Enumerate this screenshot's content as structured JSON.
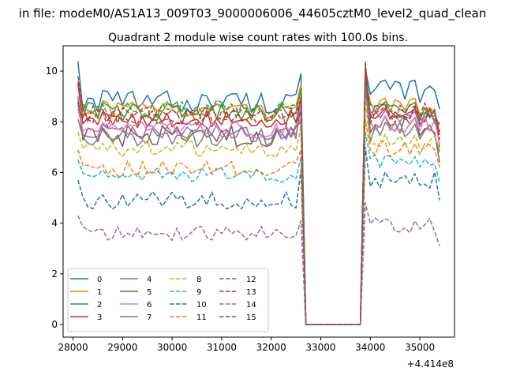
{
  "suptitle": "in file: modeM0/AS1A13_009T03_9000006006_44605cztM0_level2_quad_clean",
  "chart_data": {
    "type": "line",
    "title": "Quadrant 2 module wise count rates with 100.0s bins.",
    "xlabel": "",
    "ylabel": "",
    "x_offset_label": "+4.414e8",
    "xlim": [
      27800,
      35700
    ],
    "ylim": [
      -0.5,
      11.0
    ],
    "xticks": [
      28000,
      29000,
      30000,
      31000,
      32000,
      33000,
      34000,
      35000
    ],
    "yticks": [
      0,
      2,
      4,
      6,
      8,
      10
    ],
    "grid": false,
    "legend_position": "lower-left",
    "legend_columns": 4,
    "x": {
      "start": 28100,
      "step": 100,
      "count": 74
    },
    "gap": {
      "start": 32700,
      "end": 33800,
      "value": 0
    },
    "series": [
      {
        "name": "0",
        "color": "#1f77b4",
        "dash": "solid",
        "base": 8.8,
        "first": 10.4,
        "end_value": 9.9,
        "resume_value": 10.1,
        "post": 9.2,
        "last": 8.5,
        "amp": 0.45
      },
      {
        "name": "1",
        "color": "#ff7f0e",
        "dash": "solid",
        "base": 8.5,
        "first": 9.5,
        "end_value": 9.5,
        "resume_value": 9.7,
        "post": 8.6,
        "last": 7.6,
        "amp": 0.35
      },
      {
        "name": "2",
        "color": "#2ca02c",
        "dash": "solid",
        "base": 8.4,
        "first": 8.5,
        "end_value": 9.3,
        "resume_value": 9.9,
        "post": 8.4,
        "last": 7.0,
        "amp": 0.4
      },
      {
        "name": "3",
        "color": "#d62728",
        "dash": "solid",
        "base": 8.1,
        "first": 9.5,
        "end_value": 9.0,
        "resume_value": 10.2,
        "post": 8.2,
        "last": 7.5,
        "amp": 0.35
      },
      {
        "name": "4",
        "color": "#9467bd",
        "dash": "solid",
        "base": 7.6,
        "first": 9.0,
        "end_value": 9.0,
        "resume_value": 9.6,
        "post": 8.1,
        "last": 7.9,
        "amp": 0.35
      },
      {
        "name": "5",
        "color": "#8c564b",
        "dash": "solid",
        "base": 7.4,
        "first": 8.8,
        "end_value": 8.0,
        "resume_value": 9.9,
        "post": 7.8,
        "last": 6.4,
        "amp": 0.45
      },
      {
        "name": "6",
        "color": "#e377c2",
        "dash": "solid",
        "base": 7.7,
        "first": 8.5,
        "end_value": 8.1,
        "resume_value": 9.2,
        "post": 7.9,
        "last": 7.1,
        "amp": 0.35
      },
      {
        "name": "7",
        "color": "#7f7f7f",
        "dash": "solid",
        "base": 7.4,
        "first": 8.1,
        "end_value": 8.5,
        "resume_value": 9.5,
        "post": 7.6,
        "last": 6.8,
        "amp": 0.4
      },
      {
        "name": "8",
        "color": "#bcbd22",
        "dash": "dashed",
        "base": 6.9,
        "first": 7.6,
        "end_value": 7.8,
        "resume_value": 8.8,
        "post": 7.2,
        "last": 6.9,
        "amp": 0.35
      },
      {
        "name": "9",
        "color": "#17becf",
        "dash": "dashed",
        "base": 5.9,
        "first": 6.5,
        "end_value": 6.6,
        "resume_value": 7.6,
        "post": 6.4,
        "last": 5.6,
        "amp": 0.3
      },
      {
        "name": "10",
        "color": "#1f77b4",
        "dash": "dashed",
        "base": 4.9,
        "first": 5.7,
        "end_value": 6.1,
        "resume_value": 7.0,
        "post": 5.7,
        "last": 4.9,
        "amp": 0.35
      },
      {
        "name": "11",
        "color": "#ff7f0e",
        "dash": "dashed",
        "base": 6.1,
        "first": 6.9,
        "end_value": 6.9,
        "resume_value": 8.1,
        "post": 6.9,
        "last": 6.2,
        "amp": 0.35
      },
      {
        "name": "12",
        "color": "#2ca02c",
        "dash": "dashed",
        "base": 8.5,
        "first": 8.6,
        "end_value": 9.0,
        "resume_value": 9.7,
        "post": 8.4,
        "last": 7.9,
        "amp": 0.35
      },
      {
        "name": "13",
        "color": "#d62728",
        "dash": "dashed",
        "base": 8.3,
        "first": 9.6,
        "end_value": 8.9,
        "resume_value": 10.1,
        "post": 8.4,
        "last": 7.3,
        "amp": 0.35
      },
      {
        "name": "14",
        "color": "#9467bd",
        "dash": "dashed",
        "base": 3.6,
        "first": 4.3,
        "end_value": 4.1,
        "resume_value": 4.8,
        "post": 3.9,
        "last": 3.1,
        "amp": 0.3
      },
      {
        "name": "15",
        "color": "#8c564b",
        "dash": "dashed",
        "base": 8.2,
        "first": 9.8,
        "end_value": 8.4,
        "resume_value": 10.4,
        "post": 8.3,
        "last": 7.6,
        "amp": 0.4
      }
    ]
  }
}
